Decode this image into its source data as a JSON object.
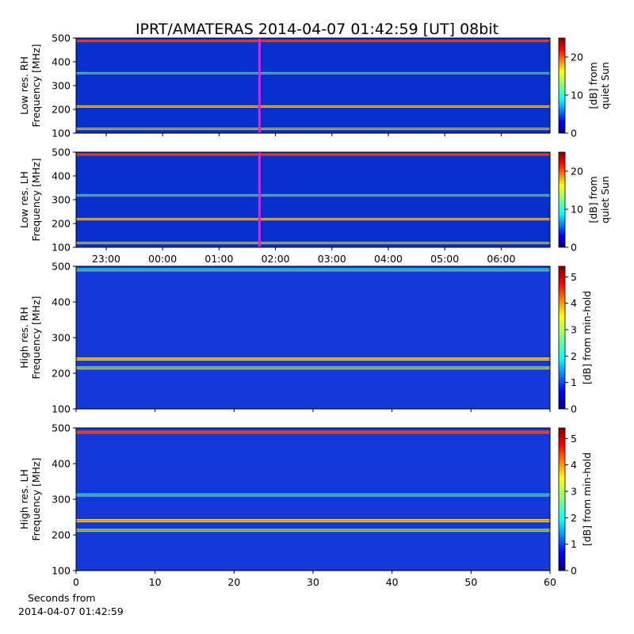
{
  "title": "IPRT/AMATERAS 2014-04-07 01:42:59 [UT]   08bit",
  "corner_label": {
    "line1": "Seconds from",
    "line2": "2014-04-07 01:42:59"
  },
  "chart_data": [
    {
      "type": "heatmap",
      "ylabel_line1": "Low res. RH",
      "ylabel_line2": "Frequency [MHz]",
      "ylim": [
        100,
        500
      ],
      "yticks": [
        "100",
        "200",
        "300",
        "400",
        "500"
      ],
      "x_ticks_labeled": false,
      "xticks_count": 8,
      "colorbar": {
        "label_line1": "[dB] from",
        "label_line2": "quiet Sun",
        "range": [
          0,
          25
        ],
        "ticks": [
          "0",
          "10",
          "20"
        ],
        "colormap": "jet"
      },
      "marker": {
        "time": "01:42:59",
        "color": "#e020e0"
      },
      "bright_bands_mhz": [
        118,
        212,
        352,
        488
      ]
    },
    {
      "type": "heatmap",
      "ylabel_line1": "Low res. LH",
      "ylabel_line2": "Frequency [MHz]",
      "ylim": [
        100,
        500
      ],
      "yticks": [
        "100",
        "200",
        "300",
        "400",
        "500"
      ],
      "xlabel_ticks": [
        "23:00",
        "00:00",
        "01:00",
        "02:00",
        "03:00",
        "04:00",
        "05:00",
        "06:00"
      ],
      "colorbar": {
        "label_line1": "[dB] from",
        "label_line2": "quiet Sun",
        "range": [
          0,
          25
        ],
        "ticks": [
          "0",
          "10",
          "20"
        ],
        "colormap": "jet"
      },
      "marker": {
        "time": "01:42:59",
        "color": "#e020e0"
      },
      "bright_bands_mhz": [
        118,
        218,
        318,
        490
      ]
    },
    {
      "type": "heatmap",
      "ylabel_line1": "High res. RH",
      "ylabel_line2": "Frequency [MHz]",
      "ylim": [
        100,
        500
      ],
      "yticks": [
        "100",
        "200",
        "300",
        "400",
        "500"
      ],
      "x_ticks_labeled": false,
      "xticks_count": 7,
      "colorbar": {
        "label_line1": "[dB] from min-hold",
        "range": [
          0,
          5.4
        ],
        "ticks": [
          "0",
          "1",
          "2",
          "3",
          "4",
          "5"
        ],
        "colormap": "jet"
      },
      "bright_bands_mhz": [
        215,
        240,
        490
      ]
    },
    {
      "type": "heatmap",
      "ylabel_line1": "High res. LH",
      "ylabel_line2": "Frequency [MHz]",
      "ylim": [
        100,
        500
      ],
      "yticks": [
        "100",
        "200",
        "300",
        "400",
        "500"
      ],
      "xlim": [
        0,
        60
      ],
      "xlabel_ticks": [
        "0",
        "10",
        "20",
        "30",
        "40",
        "50",
        "60"
      ],
      "colorbar": {
        "label_line1": "[dB] from min-hold",
        "range": [
          0,
          5.4
        ],
        "ticks": [
          "0",
          "1",
          "2",
          "3",
          "4",
          "5"
        ],
        "colormap": "jet"
      },
      "bright_bands_mhz": [
        213,
        240,
        312,
        488
      ]
    }
  ]
}
